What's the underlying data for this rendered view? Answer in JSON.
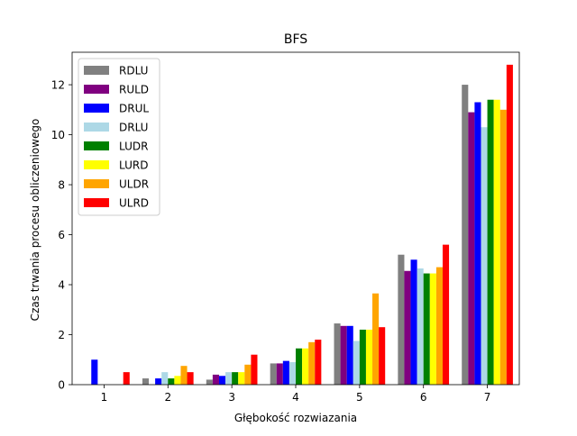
{
  "chart_data": {
    "type": "bar",
    "title": "BFS",
    "xlabel": "Głębokość rozwiazania",
    "ylabel": "Czas trwania procesu obliczeniowego",
    "categories": [
      "1",
      "2",
      "3",
      "4",
      "5",
      "6",
      "7"
    ],
    "ylim": [
      0,
      13.3
    ],
    "yticks": [
      0,
      2,
      4,
      6,
      8,
      10,
      12
    ],
    "grid": false,
    "legend_position": "upper-left",
    "series": [
      {
        "name": "RDLU",
        "color": "#808080",
        "values": [
          0,
          0.25,
          0.2,
          0.85,
          2.45,
          5.2,
          12.0
        ]
      },
      {
        "name": "RULD",
        "color": "#800080",
        "values": [
          0,
          0,
          0.4,
          0.85,
          2.35,
          4.55,
          10.9
        ]
      },
      {
        "name": "DRUL",
        "color": "#0000ff",
        "values": [
          1.0,
          0.25,
          0.35,
          0.95,
          2.35,
          5.0,
          11.3
        ]
      },
      {
        "name": "DRLU",
        "color": "#add8e6",
        "values": [
          0,
          0.5,
          0.5,
          0.9,
          1.75,
          4.65,
          10.3
        ]
      },
      {
        "name": "LUDR",
        "color": "#008000",
        "values": [
          0,
          0.25,
          0.5,
          1.45,
          2.2,
          4.45,
          11.4
        ]
      },
      {
        "name": "LURD",
        "color": "#ffff00",
        "values": [
          0,
          0.35,
          0.5,
          1.45,
          2.2,
          4.45,
          11.4
        ]
      },
      {
        "name": "ULDR",
        "color": "#ffa500",
        "values": [
          0,
          0.75,
          0.8,
          1.7,
          3.65,
          4.7,
          11.0
        ]
      },
      {
        "name": "ULRD",
        "color": "#ff0000",
        "values": [
          0.5,
          0.5,
          1.2,
          1.8,
          2.3,
          5.6,
          12.8
        ]
      }
    ]
  }
}
